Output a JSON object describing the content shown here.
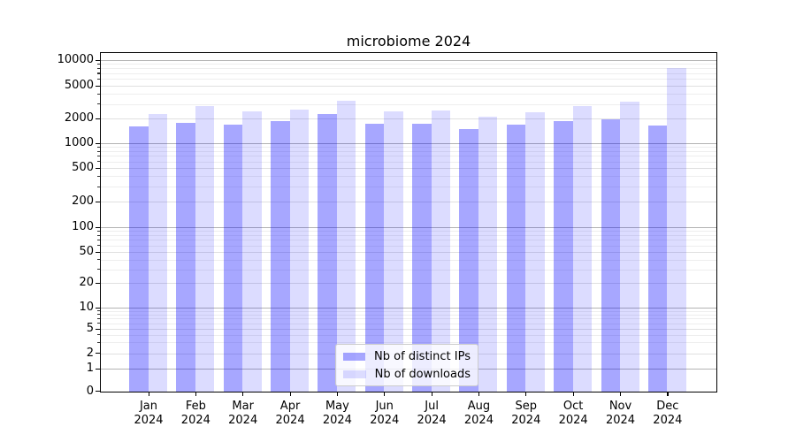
{
  "title": "microbiome 2024",
  "chart_data": {
    "type": "bar",
    "title": "microbiome 2024",
    "categories": [
      "Jan 2024",
      "Feb 2024",
      "Mar 2024",
      "Apr 2024",
      "May 2024",
      "Jun 2024",
      "Jul 2024",
      "Aug 2024",
      "Sep 2024",
      "Oct 2024",
      "Nov 2024",
      "Dec 2024"
    ],
    "series": [
      {
        "name": "Nb of distinct IPs",
        "color": "#a8a8f8",
        "fill": "rgba(0,0,255,0.345)",
        "values": [
          1600,
          1780,
          1700,
          1850,
          2250,
          1740,
          1710,
          1480,
          1700,
          1860,
          1950,
          1630
        ]
      },
      {
        "name": "Nb of downloads",
        "color": "#dcdcf8",
        "fill": "rgba(0,0,255,0.137)",
        "values": [
          2250,
          2850,
          2450,
          2550,
          3300,
          2430,
          2520,
          2080,
          2400,
          2800,
          3240,
          8000
        ]
      }
    ],
    "yscale": "symlog",
    "yticks": [
      0,
      1,
      2,
      5,
      10,
      20,
      50,
      100,
      200,
      500,
      1000,
      2000,
      5000,
      10000
    ],
    "ylim": [
      0,
      12500
    ],
    "xlabel": "",
    "ylabel": "",
    "grid": "both",
    "legend_position": "lower center"
  },
  "colors": {
    "decade_grid": "#b3b3b3",
    "labeled_grid": "#e0e0e0",
    "minor_grid": "#eeeeee",
    "axis": "#000000"
  }
}
